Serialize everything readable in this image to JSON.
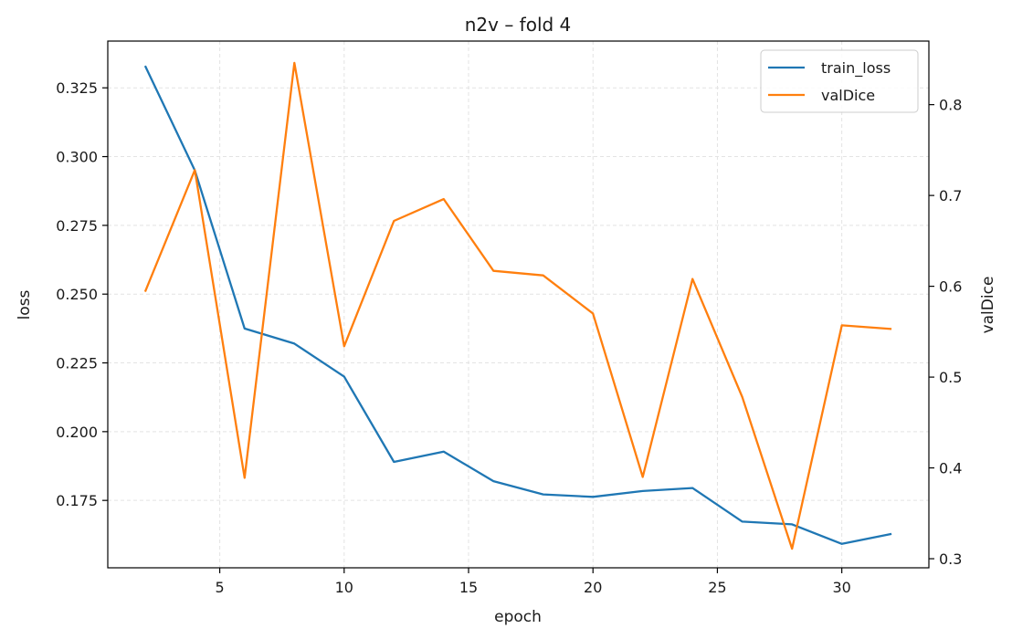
{
  "chart_data": {
    "type": "line",
    "title": "n2v – fold 4",
    "xlabel": "epoch",
    "ylabel": "loss",
    "y2label": "valDice",
    "xlim": [
      0.5,
      33.5
    ],
    "ylim": [
      0.1505,
      0.342
    ],
    "y2lim": [
      0.29,
      0.87
    ],
    "xticks": [
      5,
      10,
      15,
      20,
      25,
      30
    ],
    "yticks": [
      0.175,
      0.2,
      0.225,
      0.25,
      0.275,
      0.3,
      0.325
    ],
    "ytick_labels": [
      "0.175",
      "0.200",
      "0.225",
      "0.250",
      "0.275",
      "0.300",
      "0.325"
    ],
    "y2ticks": [
      0.3,
      0.4,
      0.5,
      0.6,
      0.7,
      0.8
    ],
    "y2tick_labels": [
      "0.3",
      "0.4",
      "0.5",
      "0.6",
      "0.7",
      "0.8"
    ],
    "grid": true,
    "legend_position": "top-right",
    "x": [
      2,
      4,
      6,
      8,
      10,
      12,
      14,
      16,
      18,
      20,
      22,
      24,
      26,
      28,
      30,
      32
    ],
    "series": [
      {
        "name": "train_loss",
        "axis": "left",
        "color": "#1f77b4",
        "values": [
          0.333,
          0.295,
          0.2375,
          0.232,
          0.22,
          0.189,
          0.1927,
          0.182,
          0.1772,
          0.1763,
          0.1784,
          0.1795,
          0.1673,
          0.1663,
          0.1592,
          0.1628
        ]
      },
      {
        "name": "valDice",
        "axis": "right",
        "color": "#ff7f0e",
        "values": [
          0.594,
          0.728,
          0.389,
          0.846,
          0.534,
          0.672,
          0.696,
          0.617,
          0.612,
          0.57,
          0.39,
          0.608,
          0.478,
          0.311,
          0.557,
          0.553
        ]
      }
    ]
  }
}
